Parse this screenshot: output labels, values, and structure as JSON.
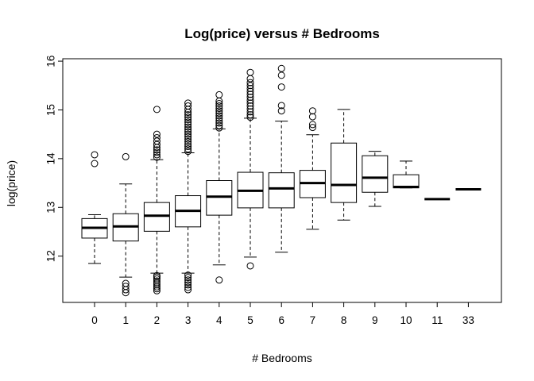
{
  "chart_data": {
    "type": "boxplot",
    "title": "Log(price) versus # Bedrooms",
    "xlabel": "# Bedrooms",
    "ylabel": "log(price)",
    "ylim": [
      11.05,
      16.05
    ],
    "yticks": [
      12,
      13,
      14,
      15,
      16
    ],
    "grid": false,
    "legend": "none",
    "categories": [
      "0",
      "1",
      "2",
      "3",
      "4",
      "5",
      "6",
      "7",
      "8",
      "9",
      "10",
      "11",
      "33"
    ],
    "boxes": [
      {
        "category": "0",
        "lower_whisker": 11.85,
        "q1": 12.37,
        "median": 12.58,
        "q3": 12.77,
        "upper_whisker": 12.85,
        "outliers": [
          13.9,
          14.08
        ]
      },
      {
        "category": "1",
        "lower_whisker": 11.57,
        "q1": 12.31,
        "median": 12.61,
        "q3": 12.87,
        "upper_whisker": 13.48,
        "outliers": [
          11.25,
          11.31,
          11.38,
          11.44,
          14.04
        ]
      },
      {
        "category": "2",
        "lower_whisker": 11.65,
        "q1": 12.51,
        "median": 12.83,
        "q3": 13.1,
        "upper_whisker": 13.98,
        "outliers": [
          11.29,
          11.33,
          11.37,
          11.41,
          11.45,
          11.49,
          11.53,
          11.57,
          11.6,
          14.03,
          14.08,
          14.13,
          14.18,
          14.23,
          14.29,
          14.36,
          14.43,
          14.5,
          15.01
        ]
      },
      {
        "category": "3",
        "lower_whisker": 11.65,
        "q1": 12.6,
        "median": 12.93,
        "q3": 13.24,
        "upper_whisker": 14.12,
        "outliers": [
          11.31,
          11.36,
          11.41,
          11.46,
          11.51,
          11.56,
          11.61,
          14.15,
          14.2,
          14.25,
          14.3,
          14.35,
          14.4,
          14.45,
          14.5,
          14.55,
          14.6,
          14.65,
          14.7,
          14.75,
          14.8,
          14.85,
          14.9,
          14.95,
          15.01,
          15.08,
          15.14
        ]
      },
      {
        "category": "4",
        "lower_whisker": 11.82,
        "q1": 12.84,
        "median": 13.22,
        "q3": 13.55,
        "upper_whisker": 14.61,
        "outliers": [
          11.51,
          14.63,
          14.68,
          14.73,
          14.78,
          14.83,
          14.88,
          14.93,
          14.98,
          15.03,
          15.08,
          15.13,
          15.18,
          15.31
        ]
      },
      {
        "category": "5",
        "lower_whisker": 11.98,
        "q1": 12.99,
        "median": 13.34,
        "q3": 13.72,
        "upper_whisker": 14.83,
        "outliers": [
          11.8,
          14.85,
          14.9,
          14.96,
          15.02,
          15.08,
          15.14,
          15.2,
          15.26,
          15.32,
          15.38,
          15.44,
          15.5,
          15.56,
          15.64,
          15.77
        ]
      },
      {
        "category": "6",
        "lower_whisker": 12.08,
        "q1": 12.99,
        "median": 13.39,
        "q3": 13.71,
        "upper_whisker": 14.77,
        "outliers": [
          14.98,
          15.09,
          15.47,
          15.71,
          15.85
        ]
      },
      {
        "category": "7",
        "lower_whisker": 12.55,
        "q1": 13.2,
        "median": 13.5,
        "q3": 13.76,
        "upper_whisker": 14.49,
        "outliers": [
          14.64,
          14.7,
          14.86,
          14.98
        ]
      },
      {
        "category": "8",
        "lower_whisker": 12.74,
        "q1": 13.1,
        "median": 13.46,
        "q3": 14.32,
        "upper_whisker": 15.01,
        "outliers": []
      },
      {
        "category": "9",
        "lower_whisker": 13.02,
        "q1": 13.31,
        "median": 13.61,
        "q3": 14.06,
        "upper_whisker": 14.15,
        "outliers": []
      },
      {
        "category": "10",
        "lower_whisker": 13.4,
        "q1": 13.4,
        "median": 13.42,
        "q3": 13.67,
        "upper_whisker": 13.95,
        "outliers": []
      },
      {
        "category": "11",
        "lower_whisker": 13.17,
        "q1": 13.17,
        "median": 13.17,
        "q3": 13.17,
        "upper_whisker": 13.17,
        "outliers": []
      },
      {
        "category": "33",
        "lower_whisker": 13.37,
        "q1": 13.37,
        "median": 13.37,
        "q3": 13.37,
        "upper_whisker": 13.37,
        "outliers": []
      }
    ]
  }
}
